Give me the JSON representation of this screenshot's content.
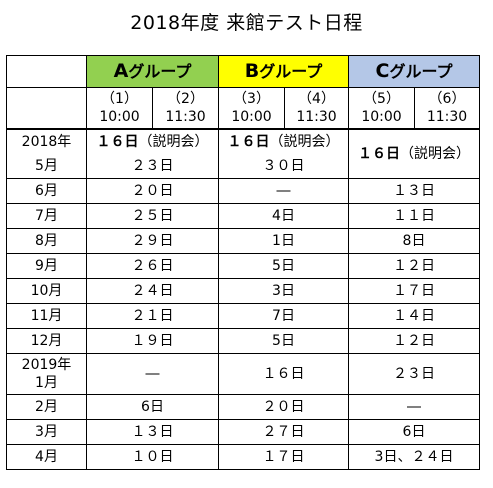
{
  "title": "2018年度 来館テスト日程",
  "groups": [
    {
      "letter": "A",
      "suffix": "グループ",
      "color": "#92d050"
    },
    {
      "letter": "B",
      "suffix": "グループ",
      "color": "#ffff00"
    },
    {
      "letter": "C",
      "suffix": "グループ",
      "color": "#b4c7e7"
    }
  ],
  "sessions": [
    {
      "num": "（1）",
      "time": "10:00"
    },
    {
      "num": "（2）",
      "time": "11:30"
    },
    {
      "num": "（3）",
      "time": "10:00"
    },
    {
      "num": "（4）",
      "time": "11:30"
    },
    {
      "num": "（5）",
      "time": "10:00"
    },
    {
      "num": "（6）",
      "time": "11:30"
    }
  ],
  "year_2018": "2018年",
  "briefing": {
    "a_day": "１６日",
    "b_day": "１６日",
    "c_day": "１６日",
    "note": "（説明会）"
  },
  "rows": [
    {
      "month": "5月",
      "a": "２３日",
      "b": "３０日",
      "c": ""
    },
    {
      "month": "6月",
      "a": "２０日",
      "b": "―",
      "c": "１３日"
    },
    {
      "month": "7月",
      "a": "２５日",
      "b": "4日",
      "c": "１１日"
    },
    {
      "month": "8月",
      "a": "２９日",
      "b": "1日",
      "c": "8日"
    },
    {
      "month": "9月",
      "a": "２６日",
      "b": "5日",
      "c": "１２日"
    },
    {
      "month": "10月",
      "a": "２４日",
      "b": "3日",
      "c": "１７日"
    },
    {
      "month": "11月",
      "a": "２１日",
      "b": "7日",
      "c": "１４日"
    },
    {
      "month": "12月",
      "a": "１９日",
      "b": "5日",
      "c": "１２日"
    }
  ],
  "jan": {
    "year": "2019年",
    "month": "1月",
    "a": "―",
    "b": "１６日",
    "c": "２３日"
  },
  "rows2": [
    {
      "month": "2月",
      "a": "6日",
      "b": "２０日",
      "c": "―"
    },
    {
      "month": "3月",
      "a": "１３日",
      "b": "２７日",
      "c": "6日"
    },
    {
      "month": "4月",
      "a": "１０日",
      "b": "１７日",
      "c": "3日、２４日"
    }
  ]
}
